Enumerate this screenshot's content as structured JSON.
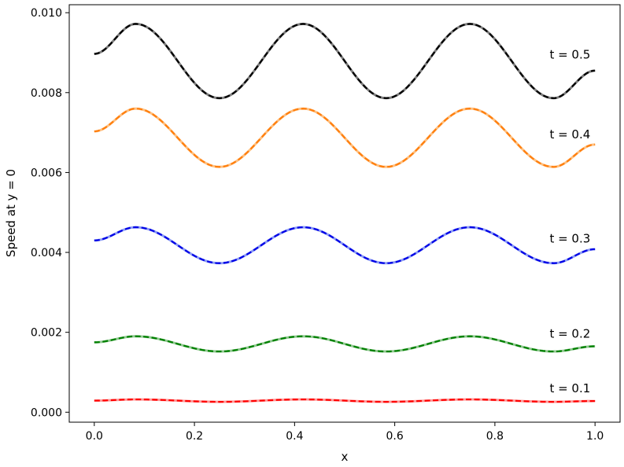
{
  "chart_data": {
    "type": "line",
    "title": "",
    "xlabel": "x",
    "ylabel": "Speed at y = 0",
    "xlim": [
      -0.05,
      1.05
    ],
    "ylim": [
      -0.00025,
      0.0102
    ],
    "x_ticks": [
      {
        "value": 0.0,
        "label": "0.0"
      },
      {
        "value": 0.2,
        "label": "0.2"
      },
      {
        "value": 0.4,
        "label": "0.4"
      },
      {
        "value": 0.6,
        "label": "0.6"
      },
      {
        "value": 0.8,
        "label": "0.8"
      },
      {
        "value": 1.0,
        "label": "1.0"
      }
    ],
    "y_ticks": [
      {
        "value": 0.0,
        "label": "0.000"
      },
      {
        "value": 0.002,
        "label": "0.002"
      },
      {
        "value": 0.004,
        "label": "0.004"
      },
      {
        "value": 0.006,
        "label": "0.006"
      },
      {
        "value": 0.008,
        "label": "0.008"
      },
      {
        "value": 0.01,
        "label": "0.010"
      }
    ],
    "grid": false,
    "legend": "none",
    "series": [
      {
        "label": "t = 0.1",
        "label_at": [
          0.95,
          0.0005
        ],
        "solid_color": "#ff9999",
        "dash_color": "#ff0000",
        "x": [
          0.0,
          0.083,
          0.25,
          0.417,
          0.583,
          0.75,
          0.917,
          1.0
        ],
        "y": [
          0.00029,
          0.00032,
          0.00026,
          0.00032,
          0.00026,
          0.00032,
          0.00026,
          0.00028
        ]
      },
      {
        "label": "t = 0.2",
        "label_at": [
          0.95,
          0.00187
        ],
        "solid_color": "#90c890",
        "dash_color": "#008000",
        "x": [
          0.0,
          0.083,
          0.25,
          0.417,
          0.583,
          0.75,
          0.917,
          1.0
        ],
        "y": [
          0.00175,
          0.0019,
          0.00152,
          0.0019,
          0.00152,
          0.0019,
          0.00152,
          0.00165
        ]
      },
      {
        "label": "t = 0.3",
        "label_at": [
          0.95,
          0.00425
        ],
        "solid_color": "#8c9cf5",
        "dash_color": "#0000e6",
        "x": [
          0.0,
          0.083,
          0.25,
          0.417,
          0.583,
          0.75,
          0.917,
          1.0
        ],
        "y": [
          0.0043,
          0.00463,
          0.00373,
          0.00463,
          0.00373,
          0.00463,
          0.00373,
          0.00408
        ]
      },
      {
        "label": "t = 0.4",
        "label_at": [
          0.95,
          0.00685
        ],
        "solid_color": "#ffc080",
        "dash_color": "#ff7f0e",
        "x": [
          0.0,
          0.083,
          0.25,
          0.417,
          0.583,
          0.75,
          0.917,
          1.0
        ],
        "y": [
          0.00703,
          0.0076,
          0.00614,
          0.0076,
          0.00614,
          0.0076,
          0.00614,
          0.0067
        ]
      },
      {
        "label": "t = 0.5",
        "label_at": [
          0.95,
          0.00885
        ],
        "solid_color": "#808080",
        "dash_color": "#000000",
        "x": [
          0.0,
          0.083,
          0.25,
          0.417,
          0.583,
          0.75,
          0.917,
          1.0
        ],
        "y": [
          0.00897,
          0.00972,
          0.00786,
          0.00972,
          0.00786,
          0.00972,
          0.00786,
          0.00855
        ]
      }
    ]
  }
}
